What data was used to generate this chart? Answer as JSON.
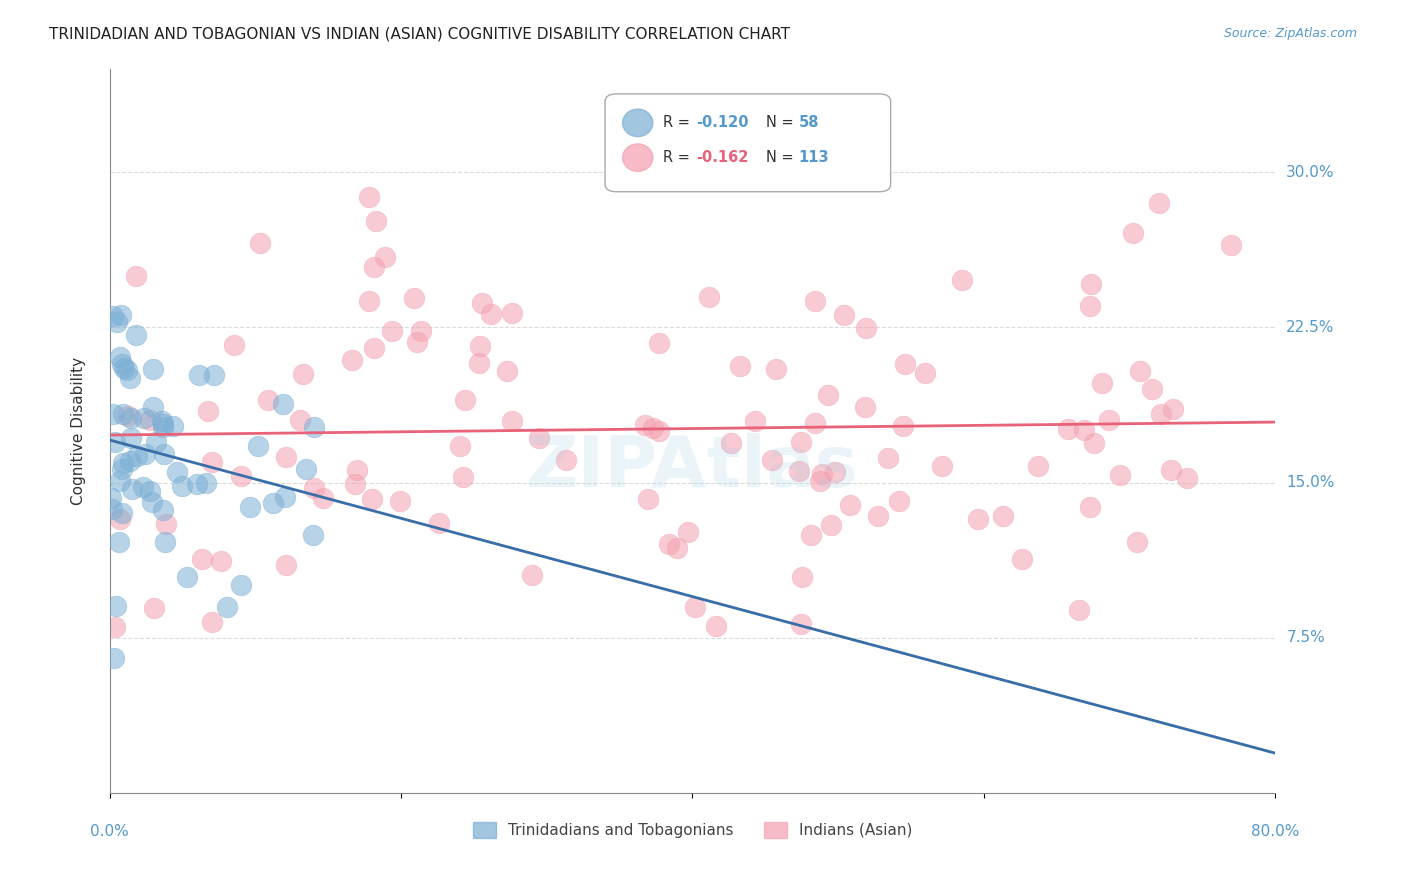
{
  "title": "TRINIDADIAN AND TOBAGONIAN VS INDIAN (ASIAN) COGNITIVE DISABILITY CORRELATION CHART",
  "source": "Source: ZipAtlas.com",
  "ylabel": "Cognitive Disability",
  "ytick_labels": [
    "7.5%",
    "15.0%",
    "22.5%",
    "30.0%"
  ],
  "ytick_values": [
    0.075,
    0.15,
    0.225,
    0.3
  ],
  "xlim": [
    0.0,
    0.8
  ],
  "ylim": [
    0.0,
    0.35
  ],
  "legend1_R": -0.12,
  "legend1_N": 58,
  "legend2_R": -0.162,
  "legend2_N": 113,
  "blue_color": "#7bafd4",
  "pink_color": "#f4a0b0",
  "blue_line_color": "#3a6ea8",
  "pink_line_color": "#e8627a",
  "watermark": "ZIPAtlas",
  "background_color": "#ffffff",
  "grid_color": "#cccccc",
  "title_fontsize": 11,
  "tick_label_color": "#5599cc"
}
